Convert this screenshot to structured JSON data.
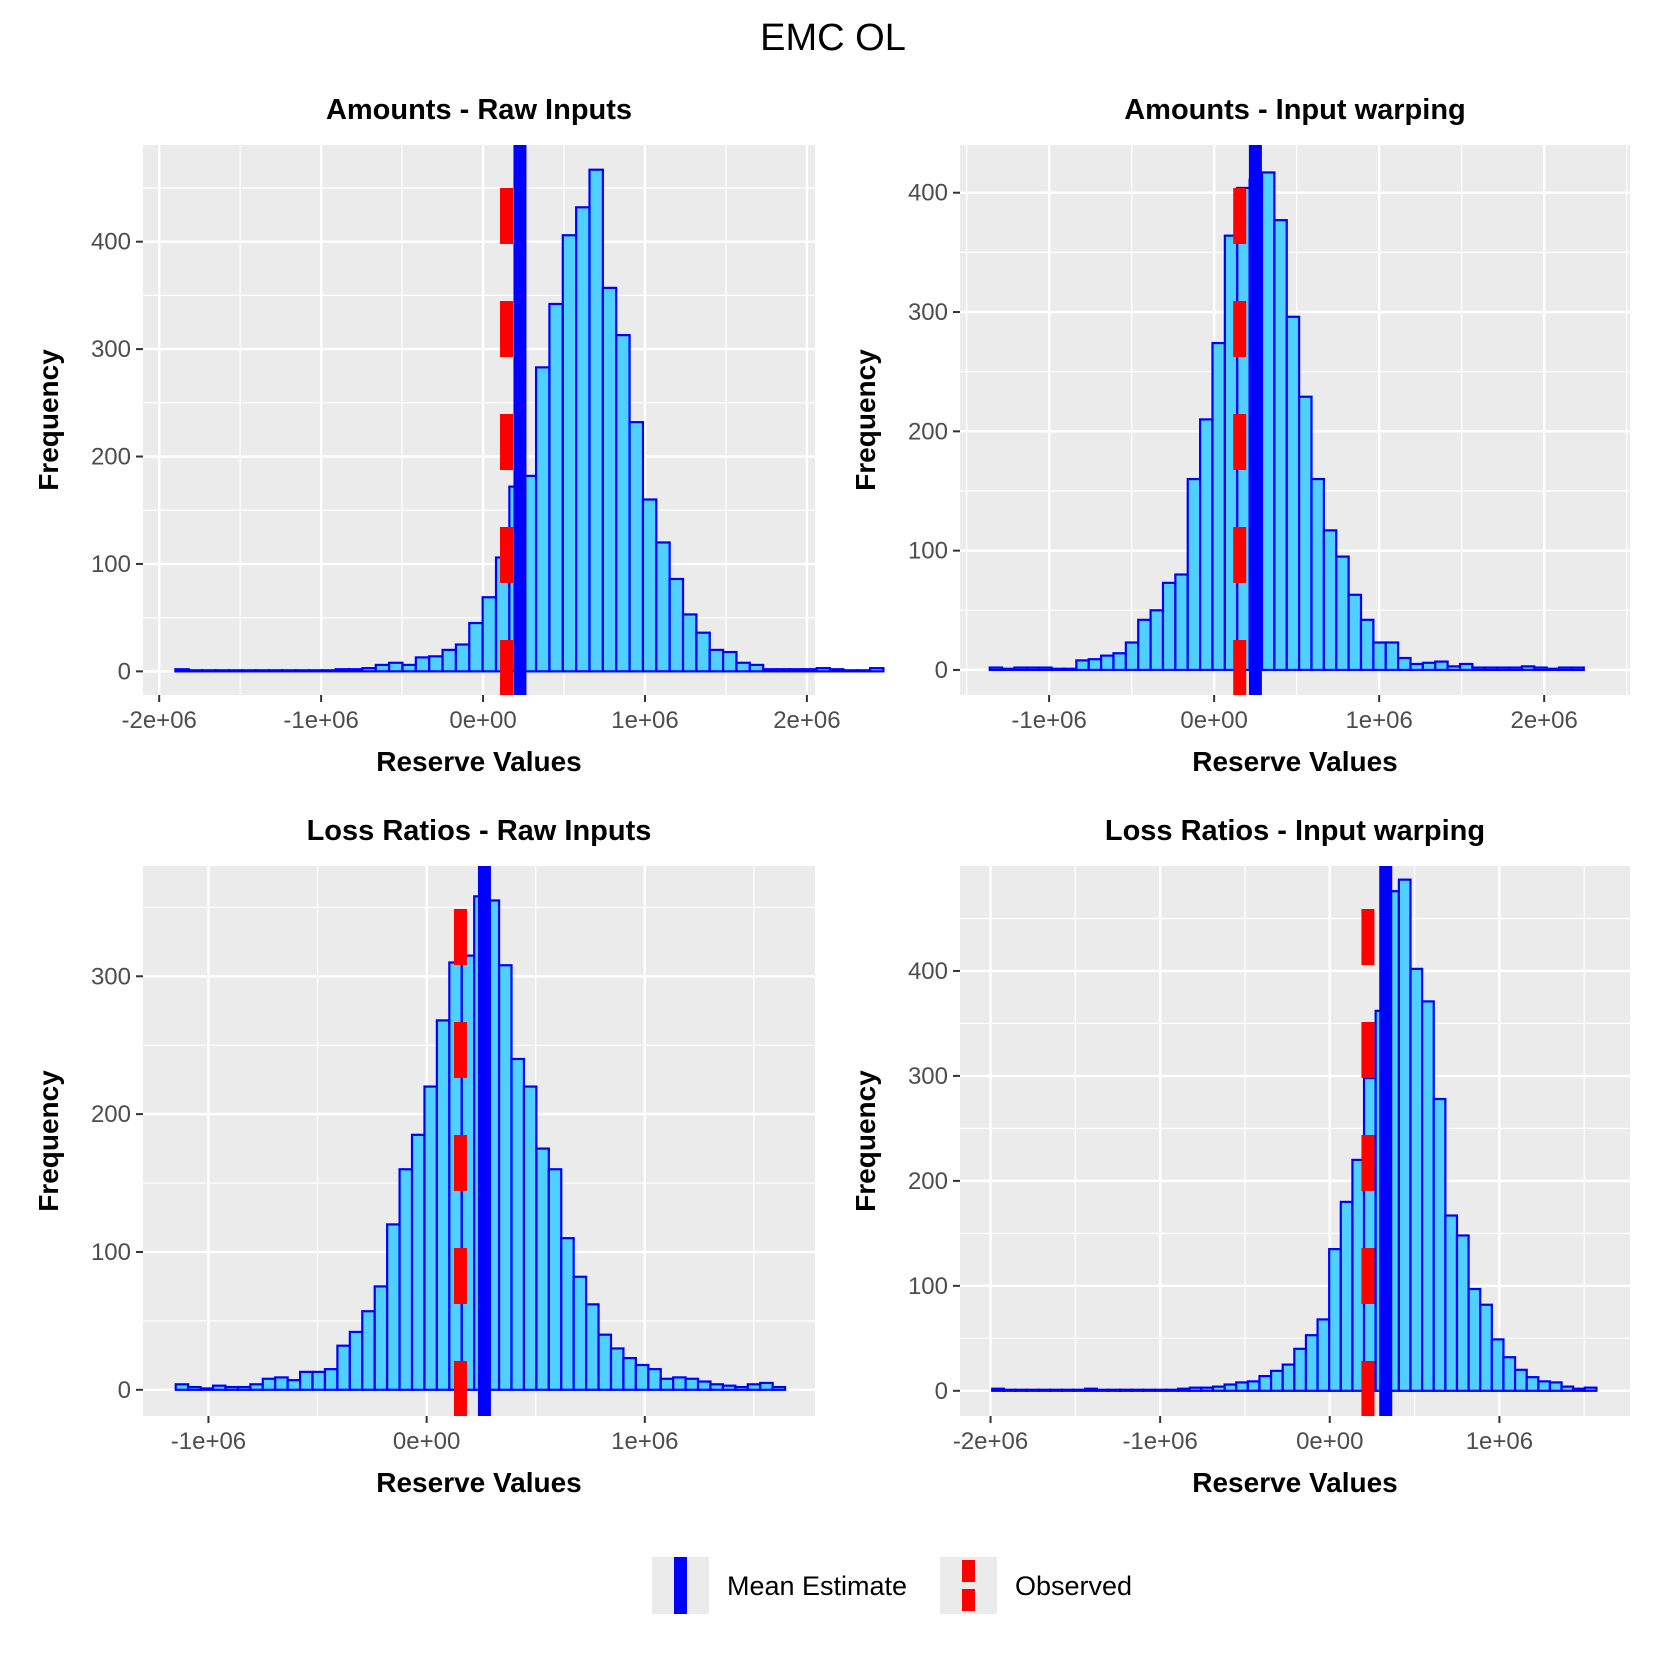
{
  "figure_title": "EMC OL",
  "colors": {
    "fill": "#4fd0ff",
    "outline": "#0000ff",
    "mean": "#0000ff",
    "observed": "#ff0000",
    "panel": "#ebebeb",
    "grid": "#ffffff"
  },
  "legend": {
    "items": [
      {
        "label": "Mean Estimate",
        "color": "#0000ff",
        "style": "solid"
      },
      {
        "label": "Observed",
        "color": "#ff0000",
        "style": "dashed"
      }
    ]
  },
  "chart_data": [
    {
      "type": "bar",
      "title": "Amounts - Raw Inputs",
      "xlabel": "Reserve Values",
      "ylabel": "Frequency",
      "xlim": [
        -2100000,
        2050000
      ],
      "ylim": [
        -22,
        490
      ],
      "xticks": [
        -2000000,
        -1000000,
        0,
        1000000,
        2000000
      ],
      "xtick_labels": [
        "-2e+06",
        "-1e+06",
        "0e+00",
        "1e+06",
        "2e+06"
      ],
      "yticks": [
        0,
        100,
        200,
        300,
        400
      ],
      "ytick_labels": [
        "0",
        "100",
        "200",
        "300",
        "400"
      ],
      "bin_start": -1900000,
      "bin_width": 82500,
      "values": [
        2,
        1,
        1,
        1,
        1,
        1,
        1,
        1,
        1,
        1,
        1,
        1,
        2,
        2,
        3,
        6,
        8,
        6,
        13,
        14,
        20,
        25,
        45,
        69,
        106,
        172,
        182,
        283,
        342,
        406,
        432,
        467,
        357,
        313,
        232,
        160,
        120,
        86,
        53,
        36,
        20,
        18,
        8,
        6,
        2,
        2,
        2,
        2,
        3,
        2,
        1,
        1,
        3
      ],
      "mean": 228000,
      "observed": 145000
    },
    {
      "type": "bar",
      "title": "Amounts - Input warping",
      "xlabel": "Reserve Values",
      "ylabel": "Frequency",
      "xlim": [
        -1540000,
        2520000
      ],
      "ylim": [
        -21,
        440
      ],
      "xticks": [
        -1000000,
        0,
        1000000,
        2000000
      ],
      "xtick_labels": [
        "-1e+06",
        "0e+00",
        "1e+06",
        "2e+06"
      ],
      "yticks": [
        0,
        100,
        200,
        300,
        400
      ],
      "ytick_labels": [
        "0",
        "100",
        "200",
        "300",
        "400"
      ],
      "bin_start": -1360000,
      "bin_width": 75000,
      "values": [
        2,
        1,
        2,
        2,
        2,
        1,
        1,
        8,
        9,
        12,
        14,
        23,
        42,
        50,
        73,
        80,
        160,
        210,
        274,
        364,
        404,
        411,
        417,
        377,
        296,
        229,
        160,
        117,
        95,
        63,
        42,
        23,
        23,
        10,
        5,
        6,
        7,
        3,
        5,
        2,
        2,
        2,
        2,
        3,
        2,
        1,
        2,
        2
      ],
      "mean": 250000,
      "observed": 155000
    },
    {
      "type": "bar",
      "title": "Loss Ratios - Raw Inputs",
      "xlabel": "Reserve Values",
      "ylabel": "Frequency",
      "xlim": [
        -1300000,
        1780000
      ],
      "ylim": [
        -19,
        380
      ],
      "xticks": [
        -1000000,
        0,
        1000000
      ],
      "xtick_labels": [
        "-1e+06",
        "0e+00",
        "1e+06"
      ],
      "yticks": [
        0,
        100,
        200,
        300
      ],
      "ytick_labels": [
        "0",
        "100",
        "200",
        "300"
      ],
      "bin_start": -1150000,
      "bin_width": 57000,
      "values": [
        4,
        2,
        1,
        3,
        2,
        2,
        4,
        8,
        9,
        7,
        13,
        13,
        15,
        32,
        42,
        57,
        75,
        120,
        160,
        185,
        220,
        268,
        310,
        315,
        358,
        355,
        308,
        240,
        220,
        175,
        160,
        110,
        82,
        62,
        40,
        30,
        23,
        18,
        15,
        8,
        9,
        8,
        6,
        4,
        3,
        2,
        4,
        5,
        2
      ],
      "mean": 265000,
      "observed": 155000
    },
    {
      "type": "bar",
      "title": "Loss Ratios - Input warping",
      "xlabel": "Reserve Values",
      "ylabel": "Frequency",
      "xlim": [
        -2180000,
        1770000
      ],
      "ylim": [
        -24,
        500
      ],
      "xticks": [
        -2000000,
        -1000000,
        0,
        1000000
      ],
      "xtick_labels": [
        "-2e+06",
        "-1e+06",
        "0e+00",
        "1e+06"
      ],
      "yticks": [
        0,
        100,
        200,
        300,
        400
      ],
      "ytick_labels": [
        "0",
        "100",
        "200",
        "300",
        "400"
      ],
      "bin_start": -1990000,
      "bin_width": 68500,
      "values": [
        2,
        1,
        1,
        1,
        1,
        1,
        1,
        1,
        2,
        1,
        1,
        1,
        1,
        1,
        1,
        1,
        2,
        3,
        3,
        4,
        6,
        8,
        9,
        14,
        19,
        25,
        40,
        53,
        68,
        135,
        180,
        220,
        298,
        362,
        476,
        487,
        402,
        371,
        278,
        167,
        148,
        97,
        82,
        49,
        32,
        20,
        13,
        9,
        8,
        4,
        2,
        3
      ],
      "mean": 330000,
      "observed": 225000
    }
  ]
}
